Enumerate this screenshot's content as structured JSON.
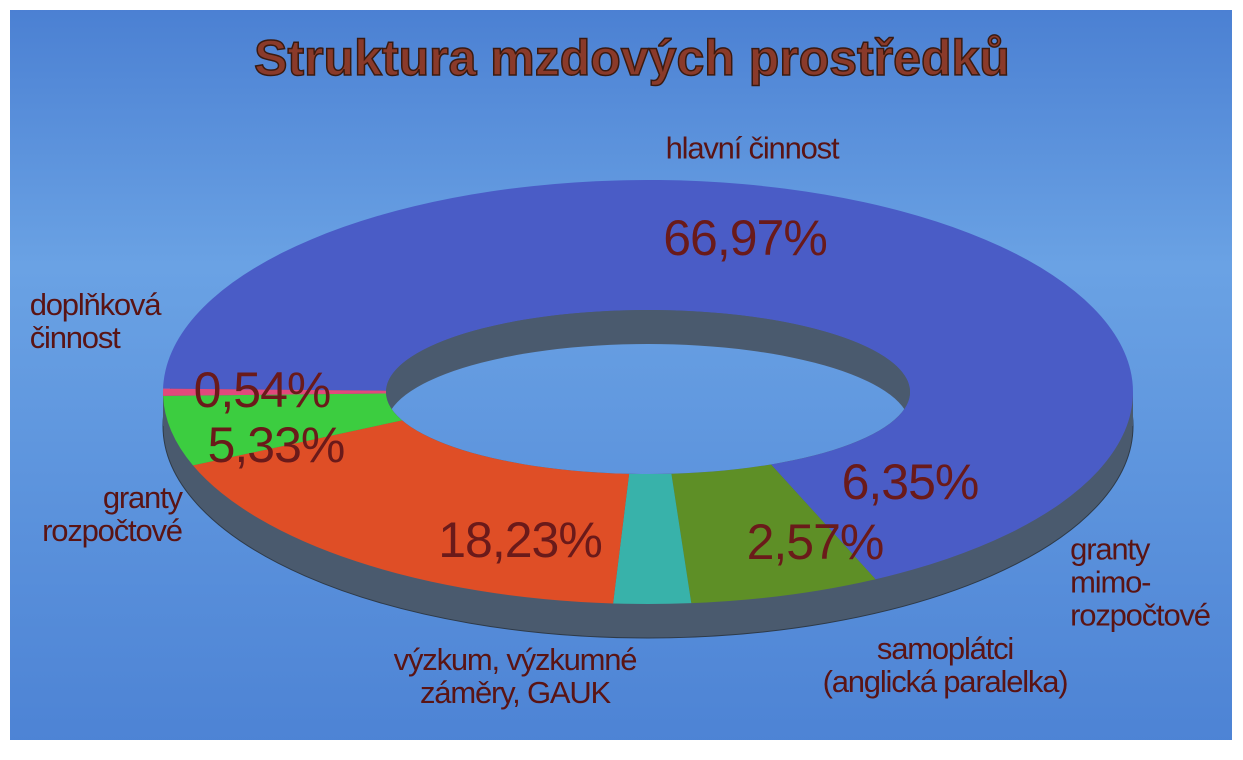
{
  "chart_data": {
    "type": "donut3d",
    "title": "Struktura mzdových prostředků",
    "categories": [
      "hlavní činnost",
      "granty mimo-\nrozpočtové",
      "samoplátci\n(anglická paralelka)",
      "výzkum, výzkumné\nzáměry, GAUK",
      "granty\nrozpočtové",
      "doplňková\nčinnost"
    ],
    "values": [
      66.97,
      6.35,
      2.57,
      18.23,
      5.33,
      0.54
    ],
    "value_labels": [
      "66,97%",
      "6,35%",
      "2,57%",
      "18,23%",
      "5,33%",
      "0,54%"
    ],
    "colors": [
      "#4a5cc6",
      "#5e8f26",
      "#38b2aa",
      "#df4e26",
      "#3ccd40",
      "#e24a7c"
    ]
  }
}
